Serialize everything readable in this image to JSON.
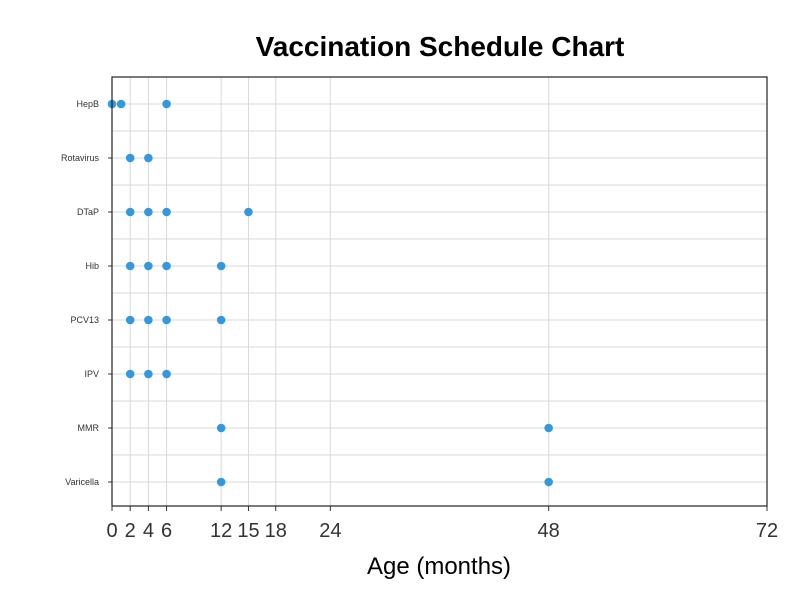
{
  "chart_data": {
    "type": "scatter",
    "title": "Vaccination Schedule Chart",
    "xlabel": "Age (months)",
    "ylabel": "",
    "xlim": [
      0,
      72
    ],
    "xticks": [
      0,
      2,
      4,
      6,
      12,
      15,
      18,
      24,
      48,
      72
    ],
    "grid": true,
    "point_color": "#3498db",
    "categories": [
      "HepB",
      "Rotavirus",
      "DTaP",
      "Hib",
      "PCV13",
      "IPV",
      "MMR",
      "Varicella"
    ],
    "series": [
      {
        "category": "HepB",
        "x": [
          0,
          1,
          6
        ]
      },
      {
        "category": "Rotavirus",
        "x": [
          2,
          4
        ]
      },
      {
        "category": "DTaP",
        "x": [
          2,
          4,
          6,
          15
        ]
      },
      {
        "category": "Hib",
        "x": [
          2,
          4,
          6,
          12
        ]
      },
      {
        "category": "PCV13",
        "x": [
          2,
          4,
          6,
          12
        ]
      },
      {
        "category": "IPV",
        "x": [
          2,
          4,
          6
        ]
      },
      {
        "category": "MMR",
        "x": [
          12,
          48
        ]
      },
      {
        "category": "Varicella",
        "x": [
          12,
          48
        ]
      }
    ]
  }
}
